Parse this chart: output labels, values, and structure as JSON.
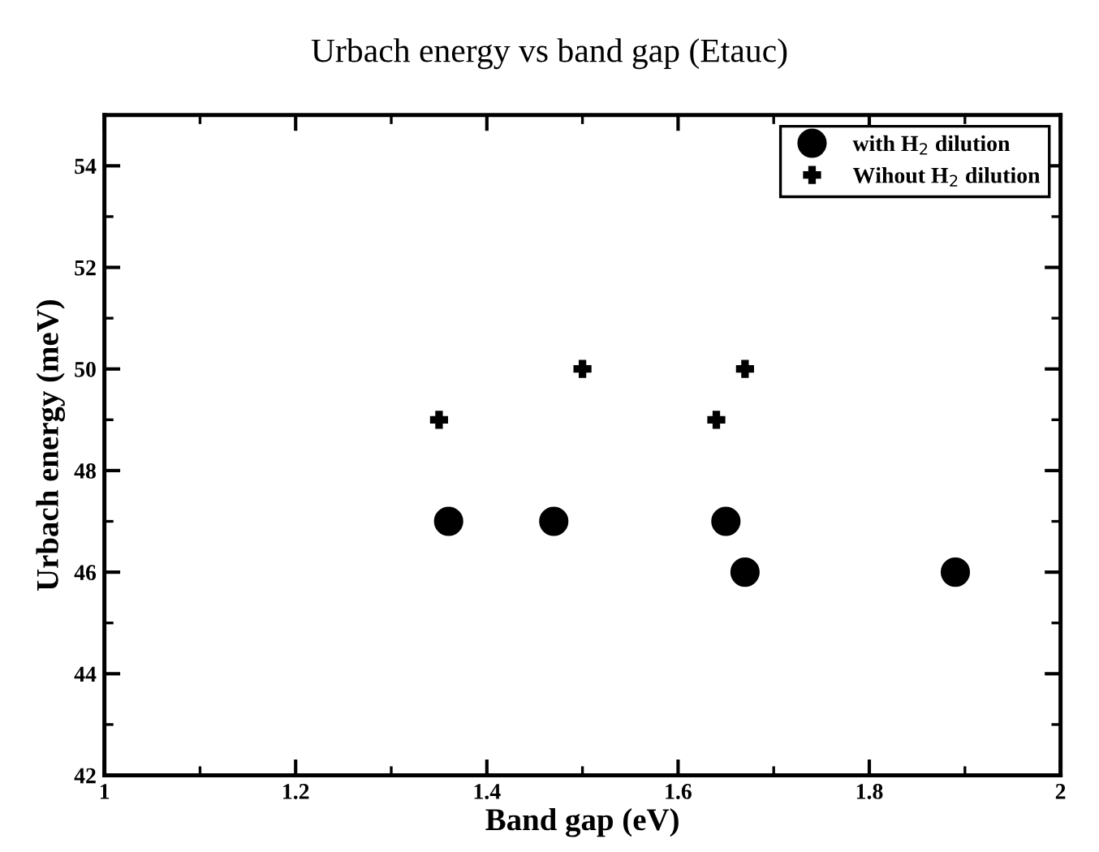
{
  "chart_data": {
    "type": "scatter",
    "title": "Urbach energy vs band gap (Etauc)",
    "xlabel": "Band gap (eV)",
    "ylabel": "Urbach energy (meV)",
    "xlim": [
      1,
      2
    ],
    "xticks": [
      1,
      1.2,
      1.4,
      1.6,
      1.8,
      2
    ],
    "ylim": [
      42,
      55
    ],
    "yticks": [
      42,
      44,
      46,
      48,
      50,
      52,
      54
    ],
    "grid": false,
    "legend": "top right",
    "series": [
      {
        "name": "with H$_{2}$ dilution",
        "color": "#000000",
        "marker": "circle",
        "x": [
          1.36,
          1.47,
          1.65,
          1.67,
          1.89
        ],
        "values": [
          47,
          47,
          47,
          46,
          46
        ]
      },
      {
        "name": "Wihout H$_{2}$ dilution",
        "color": "#000000",
        "marker": "cross",
        "x": [
          1.35,
          1.5,
          1.64,
          1.67
        ],
        "values": [
          49,
          50,
          49,
          50
        ]
      }
    ]
  }
}
